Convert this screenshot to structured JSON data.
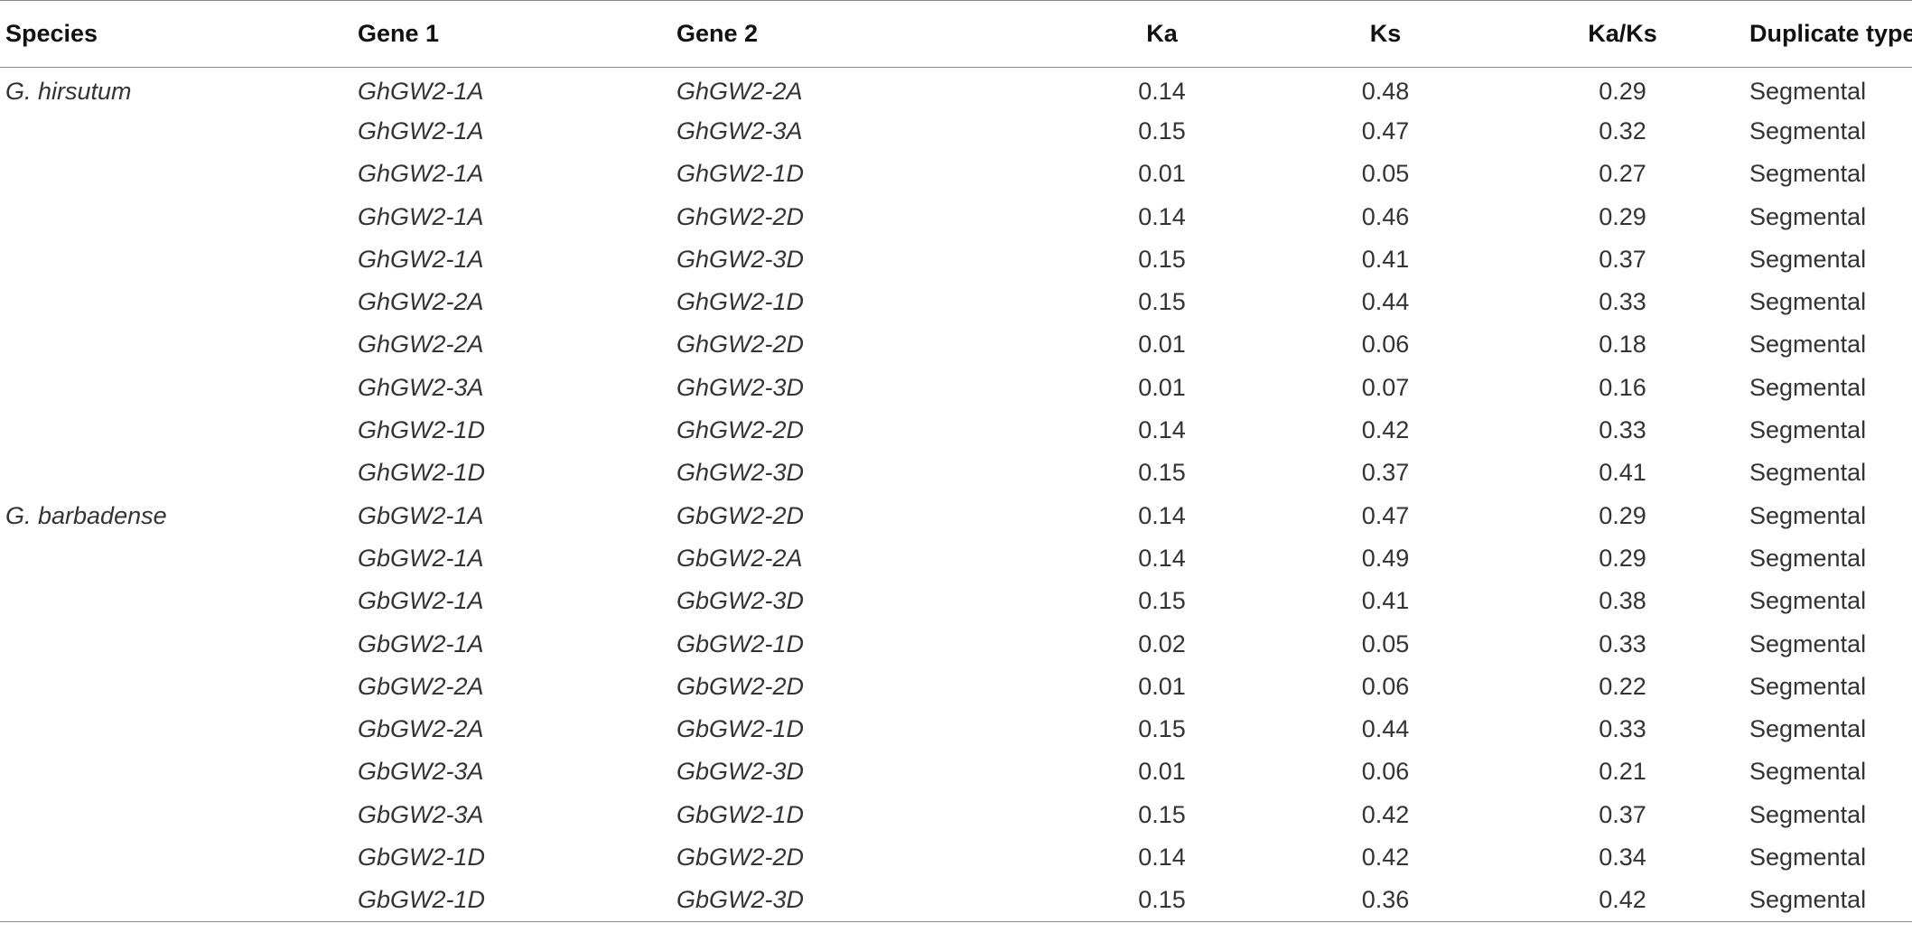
{
  "table": {
    "headers": {
      "species": "Species",
      "gene1": "Gene 1",
      "gene2": "Gene 2",
      "ka": "Ka",
      "ks": "Ks",
      "ka_ks": "Ka/Ks",
      "duplicate_type": "Duplicate type"
    },
    "rows": [
      {
        "species": "G. hirsutum",
        "gene1": "GhGW2-1A",
        "gene2": "GhGW2-2A",
        "ka": "0.14",
        "ks": "0.48",
        "ka_ks": "0.29",
        "duplicate_type": "Segmental"
      },
      {
        "species": "",
        "gene1": "GhGW2-1A",
        "gene2": "GhGW2-3A",
        "ka": "0.15",
        "ks": "0.47",
        "ka_ks": "0.32",
        "duplicate_type": "Segmental"
      },
      {
        "species": "",
        "gene1": "GhGW2-1A",
        "gene2": "GhGW2-1D",
        "ka": "0.01",
        "ks": "0.05",
        "ka_ks": "0.27",
        "duplicate_type": "Segmental"
      },
      {
        "species": "",
        "gene1": "GhGW2-1A",
        "gene2": "GhGW2-2D",
        "ka": "0.14",
        "ks": "0.46",
        "ka_ks": "0.29",
        "duplicate_type": "Segmental"
      },
      {
        "species": "",
        "gene1": "GhGW2-1A",
        "gene2": "GhGW2-3D",
        "ka": "0.15",
        "ks": "0.41",
        "ka_ks": "0.37",
        "duplicate_type": "Segmental"
      },
      {
        "species": "",
        "gene1": "GhGW2-2A",
        "gene2": "GhGW2-1D",
        "ka": "0.15",
        "ks": "0.44",
        "ka_ks": "0.33",
        "duplicate_type": "Segmental"
      },
      {
        "species": "",
        "gene1": "GhGW2-2A",
        "gene2": "GhGW2-2D",
        "ka": "0.01",
        "ks": "0.06",
        "ka_ks": "0.18",
        "duplicate_type": "Segmental"
      },
      {
        "species": "",
        "gene1": "GhGW2-3A",
        "gene2": "GhGW2-3D",
        "ka": "0.01",
        "ks": "0.07",
        "ka_ks": "0.16",
        "duplicate_type": "Segmental"
      },
      {
        "species": "",
        "gene1": "GhGW2-1D",
        "gene2": "GhGW2-2D",
        "ka": "0.14",
        "ks": "0.42",
        "ka_ks": "0.33",
        "duplicate_type": "Segmental"
      },
      {
        "species": "",
        "gene1": "GhGW2-1D",
        "gene2": "GhGW2-3D",
        "ka": "0.15",
        "ks": "0.37",
        "ka_ks": "0.41",
        "duplicate_type": "Segmental"
      },
      {
        "species": "G. barbadense",
        "gene1": "GbGW2-1A",
        "gene2": "GbGW2-2D",
        "ka": "0.14",
        "ks": "0.47",
        "ka_ks": "0.29",
        "duplicate_type": "Segmental"
      },
      {
        "species": "",
        "gene1": "GbGW2-1A",
        "gene2": "GbGW2-2A",
        "ka": "0.14",
        "ks": "0.49",
        "ka_ks": "0.29",
        "duplicate_type": "Segmental"
      },
      {
        "species": "",
        "gene1": "GbGW2-1A",
        "gene2": "GbGW2-3D",
        "ka": "0.15",
        "ks": "0.41",
        "ka_ks": "0.38",
        "duplicate_type": "Segmental"
      },
      {
        "species": "",
        "gene1": "GbGW2-1A",
        "gene2": "GbGW2-1D",
        "ka": "0.02",
        "ks": "0.05",
        "ka_ks": "0.33",
        "duplicate_type": "Segmental"
      },
      {
        "species": "",
        "gene1": "GbGW2-2A",
        "gene2": "GbGW2-2D",
        "ka": "0.01",
        "ks": "0.06",
        "ka_ks": "0.22",
        "duplicate_type": "Segmental"
      },
      {
        "species": "",
        "gene1": "GbGW2-2A",
        "gene2": "GbGW2-1D",
        "ka": "0.15",
        "ks": "0.44",
        "ka_ks": "0.33",
        "duplicate_type": "Segmental"
      },
      {
        "species": "",
        "gene1": "GbGW2-3A",
        "gene2": "GbGW2-3D",
        "ka": "0.01",
        "ks": "0.06",
        "ka_ks": "0.21",
        "duplicate_type": "Segmental"
      },
      {
        "species": "",
        "gene1": "GbGW2-3A",
        "gene2": "GbGW2-1D",
        "ka": "0.15",
        "ks": "0.42",
        "ka_ks": "0.37",
        "duplicate_type": "Segmental"
      },
      {
        "species": "",
        "gene1": "GbGW2-1D",
        "gene2": "GbGW2-2D",
        "ka": "0.14",
        "ks": "0.42",
        "ka_ks": "0.34",
        "duplicate_type": "Segmental"
      },
      {
        "species": "",
        "gene1": "GbGW2-1D",
        "gene2": "GbGW2-3D",
        "ka": "0.15",
        "ks": "0.36",
        "ka_ks": "0.42",
        "duplicate_type": "Segmental"
      }
    ]
  }
}
